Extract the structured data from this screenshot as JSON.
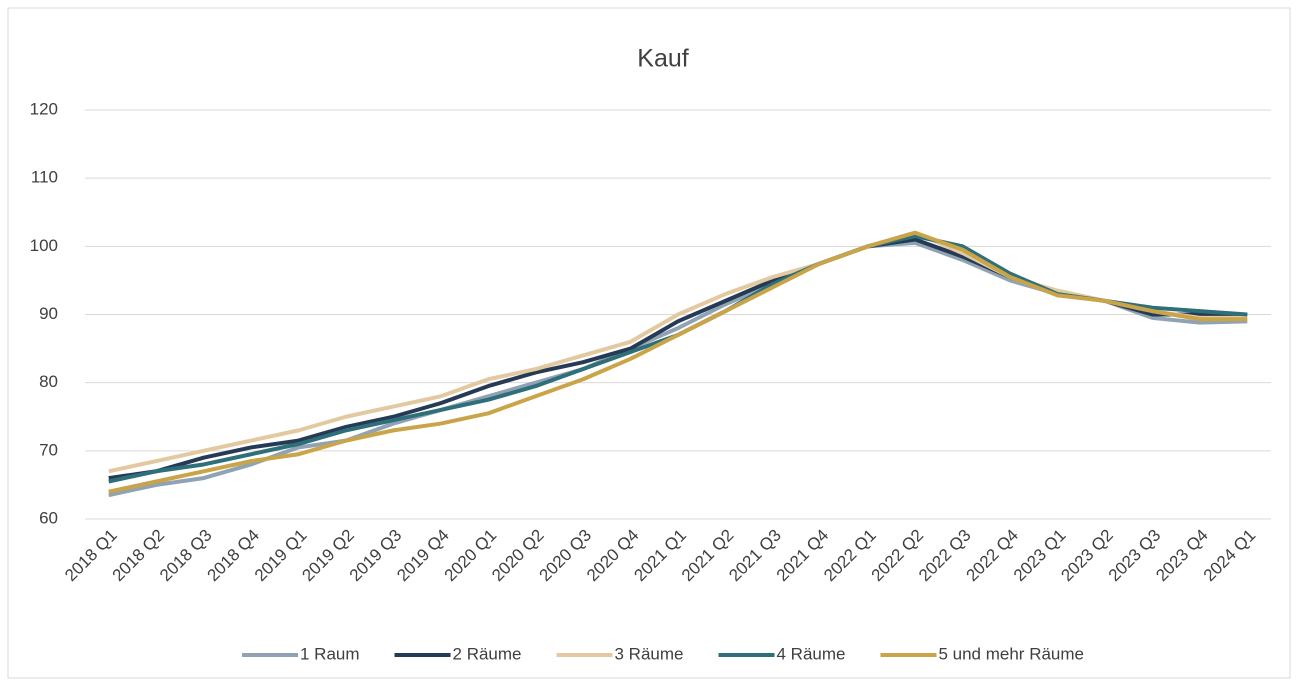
{
  "chart_data": {
    "type": "line",
    "title": "Kauf",
    "categories": [
      "2018 Q1",
      "2018 Q2",
      "2018 Q3",
      "2018 Q4",
      "2019 Q1",
      "2019 Q2",
      "2019 Q3",
      "2019 Q4",
      "2020 Q1",
      "2020 Q2",
      "2020 Q3",
      "2020 Q4",
      "2021 Q1",
      "2021 Q2",
      "2021 Q3",
      "2021 Q4",
      "2022 Q1",
      "2022 Q2",
      "2022 Q3",
      "2022 Q4",
      "2023 Q1",
      "2023 Q2",
      "2023 Q3",
      "2023 Q4",
      "2024 Q1"
    ],
    "series": [
      {
        "name": "1 Raum",
        "color": "#8fa3b5",
        "values": [
          63.5,
          65,
          66,
          68,
          70.5,
          71.5,
          74,
          76,
          78,
          80,
          82,
          85,
          88,
          91.5,
          94.5,
          97.5,
          100,
          100.5,
          98,
          95,
          93,
          92,
          89.5,
          88.8,
          89
        ]
      },
      {
        "name": "2 Räume",
        "color": "#253a55",
        "values": [
          66,
          67,
          69,
          70.5,
          71.5,
          73.5,
          75,
          77,
          79.5,
          81.5,
          83,
          85,
          89,
          92,
          95,
          97.5,
          100,
          101,
          98.5,
          95.5,
          93,
          92,
          90,
          90,
          90
        ]
      },
      {
        "name": "3 Räume",
        "color": "#e3c9a0",
        "values": [
          67,
          68.5,
          70,
          71.5,
          73,
          75,
          76.5,
          78,
          80.5,
          82,
          84,
          86,
          90,
          93,
          95.5,
          97.5,
          100,
          102,
          99,
          95.5,
          93.5,
          92,
          90.5,
          89.5,
          89.5
        ]
      },
      {
        "name": "4 Räume",
        "color": "#2e6f7a",
        "values": [
          65.5,
          67,
          68,
          69.5,
          71,
          73,
          74.5,
          76,
          77.5,
          79.5,
          82,
          84.5,
          87,
          90.5,
          94.5,
          97.5,
          100,
          101.5,
          100,
          96,
          93,
          92,
          91,
          90.5,
          90
        ]
      },
      {
        "name": "5 und mehr Räume",
        "color": "#c9a449",
        "values": [
          64,
          65.5,
          67,
          68.5,
          69.5,
          71.5,
          73,
          74,
          75.5,
          78,
          80.5,
          83.5,
          87,
          90.5,
          94,
          97.5,
          100,
          102,
          99.5,
          95.5,
          92.8,
          92,
          90.5,
          89.3,
          89.3
        ]
      }
    ],
    "ylim": [
      60,
      120
    ],
    "yticks": [
      60,
      70,
      80,
      90,
      100,
      110,
      120
    ],
    "grid": true,
    "legend": "bottom"
  }
}
